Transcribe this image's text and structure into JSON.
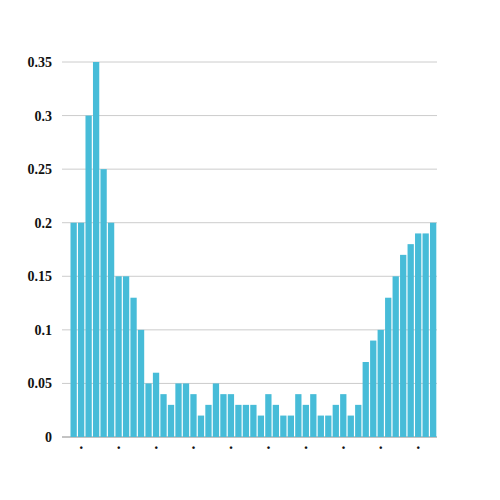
{
  "chart_data": {
    "type": "bar",
    "categories": [
      null,
      ".",
      null,
      null,
      null,
      null,
      ".",
      null,
      null,
      null,
      null,
      ".",
      null,
      null,
      null,
      null,
      ".",
      null,
      null,
      null,
      null,
      ".",
      null,
      null,
      null,
      null,
      ".",
      null,
      null,
      null,
      null,
      ".",
      null,
      null,
      null,
      null,
      ".",
      null,
      null,
      null,
      null,
      ".",
      null,
      null,
      null,
      null,
      ".",
      null,
      null
    ],
    "values": [
      0.2,
      0.2,
      0.3,
      0.35,
      0.25,
      0.2,
      0.15,
      0.15,
      0.13,
      0.1,
      0.05,
      0.06,
      0.04,
      0.03,
      0.05,
      0.05,
      0.04,
      0.02,
      0.03,
      0.05,
      0.04,
      0.04,
      0.03,
      0.03,
      0.03,
      0.02,
      0.04,
      0.03,
      0.02,
      0.02,
      0.04,
      0.03,
      0.04,
      0.02,
      0.02,
      0.03,
      0.04,
      0.02,
      0.03,
      0.07,
      0.09,
      0.1,
      0.13,
      0.15,
      0.17,
      0.18,
      0.19,
      0.19,
      0.2
    ],
    "color": "#47bcd8",
    "ylim": [
      0,
      0.35
    ],
    "yticks": [
      0,
      0.05,
      0.1,
      0.15,
      0.2,
      0.25,
      0.3,
      0.35
    ],
    "grid": true
  }
}
